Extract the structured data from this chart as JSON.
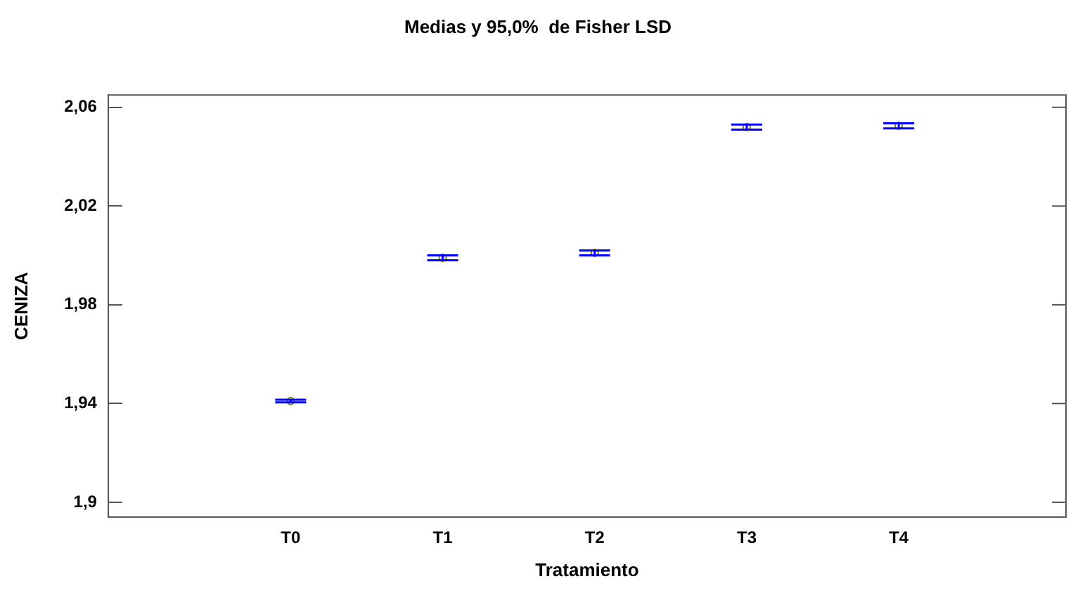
{
  "chart_data": {
    "type": "scatter",
    "title": "Medias y 95,0%  de Fisher LSD",
    "xlabel": "Tratamiento",
    "ylabel": "CENIZA",
    "categories": [
      "T0",
      "T1",
      "T2",
      "T3",
      "T4"
    ],
    "values": [
      1.941,
      1.999,
      2.001,
      2.052,
      2.0525
    ],
    "errors": [
      0.0005,
      0.001,
      0.001,
      0.001,
      0.001
    ],
    "color": "#808000",
    "ylim": [
      1.894,
      2.065
    ],
    "yticks": [
      {
        "value": 1.9,
        "label": "1,9"
      },
      {
        "value": 1.94,
        "label": "1,94"
      },
      {
        "value": 1.98,
        "label": "1,98"
      },
      {
        "value": 2.02,
        "label": "2,02"
      },
      {
        "value": 2.06,
        "label": "2,06"
      }
    ],
    "marker": "circle",
    "grid": false,
    "legend": false
  }
}
